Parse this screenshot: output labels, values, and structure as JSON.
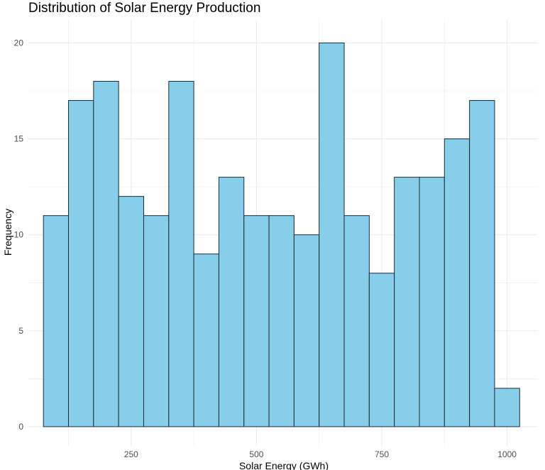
{
  "chart_data": {
    "type": "bar",
    "subtype": "histogram",
    "title": "Distribution of Solar Energy Production",
    "xlabel": "Solar Energy (GWh)",
    "ylabel": "Frequency",
    "bins": [
      {
        "start": 75,
        "end": 125,
        "count": 11
      },
      {
        "start": 125,
        "end": 175,
        "count": 17
      },
      {
        "start": 175,
        "end": 225,
        "count": 18
      },
      {
        "start": 225,
        "end": 275,
        "count": 12
      },
      {
        "start": 275,
        "end": 325,
        "count": 11
      },
      {
        "start": 325,
        "end": 375,
        "count": 18
      },
      {
        "start": 375,
        "end": 425,
        "count": 9
      },
      {
        "start": 425,
        "end": 475,
        "count": 13
      },
      {
        "start": 475,
        "end": 525,
        "count": 11
      },
      {
        "start": 525,
        "end": 575,
        "count": 11
      },
      {
        "start": 575,
        "end": 625,
        "count": 10
      },
      {
        "start": 625,
        "end": 675,
        "count": 20
      },
      {
        "start": 675,
        "end": 725,
        "count": 11
      },
      {
        "start": 725,
        "end": 775,
        "count": 8
      },
      {
        "start": 775,
        "end": 825,
        "count": 13
      },
      {
        "start": 825,
        "end": 875,
        "count": 13
      },
      {
        "start": 875,
        "end": 925,
        "count": 15
      },
      {
        "start": 925,
        "end": 975,
        "count": 17
      },
      {
        "start": 975,
        "end": 1025,
        "count": 2
      }
    ],
    "xlim": [
      45,
      1060
    ],
    "ylim": [
      -1,
      21.2
    ],
    "xticks": [
      250,
      500,
      750,
      1000
    ],
    "yticks": [
      0,
      5,
      10,
      15,
      20
    ],
    "grid": true,
    "colors": {
      "fill": "#87CEEB",
      "stroke": "#1f2a33",
      "grid": "#ebebeb"
    }
  }
}
